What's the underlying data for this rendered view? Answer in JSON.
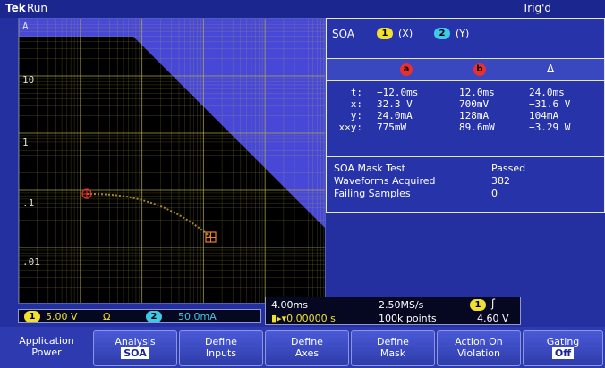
{
  "status": {
    "brand": "Tek",
    "state": "Run",
    "trigger": "Trig'd"
  },
  "plot": {
    "y_labels": [
      "A",
      "10",
      "1",
      ".1",
      ".01"
    ]
  },
  "panel": {
    "title": "SOA",
    "x_channel": "1",
    "x_text": "(X)",
    "y_channel": "2",
    "y_text": "(Y)",
    "cursor_a": "a",
    "cursor_b": "b",
    "delta": "Δ",
    "rows": [
      {
        "label": "t:",
        "a": "−12.0ms",
        "b": "12.0ms",
        "d": "24.0ms"
      },
      {
        "label": "x:",
        "a": "32.3 V",
        "b": "700mV",
        "d": "−31.6 V"
      },
      {
        "label": "y:",
        "a": "24.0mA",
        "b": "128mA",
        "d": "104mA"
      },
      {
        "label": "x×y:",
        "a": "775mW",
        "b": "89.6mW",
        "d": "−3.29 W"
      }
    ],
    "mask": [
      {
        "label": "SOA Mask Test",
        "value": "Passed"
      },
      {
        "label": "Waveforms Acquired",
        "value": "382"
      },
      {
        "label": "Failing Samples",
        "value": "0"
      }
    ]
  },
  "channels": {
    "ch1_badge": "1",
    "ch1_scale": "5.00 V",
    "ch1_ohm": "Ω",
    "ch2_badge": "2",
    "ch2_scale": "50.0mA"
  },
  "timebase": {
    "scale": "4.00ms",
    "rate": "2.50MS/s",
    "position": "▮▸▾0.00000 s",
    "points": "100k points",
    "trig_channel": "1",
    "trig_edge": "ʃ",
    "trig_level": "4.60 V"
  },
  "softkeys": [
    {
      "l1": "Application",
      "l2": "Power",
      "sel": false
    },
    {
      "l1": "Analysis",
      "l2": "SOA",
      "sel": true
    },
    {
      "l1": "Define",
      "l2": "Inputs",
      "sel": false
    },
    {
      "l1": "Define",
      "l2": "Axes",
      "sel": false
    },
    {
      "l1": "Define",
      "l2": "Mask",
      "sel": false
    },
    {
      "l1": "Action On",
      "l2": "Violation",
      "sel": false
    },
    {
      "l1": "Gating",
      "l2": "Off",
      "sel": true
    }
  ],
  "colors": {
    "ch1": "#f0e030",
    "ch2": "#40c8e8",
    "cursor": "#e83030",
    "grid": "#b8b040",
    "mask": "#4848d8"
  }
}
